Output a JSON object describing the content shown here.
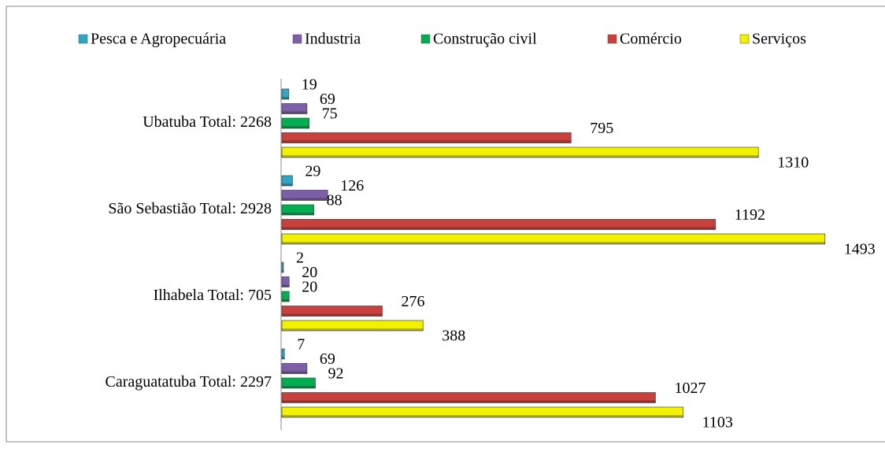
{
  "chart_data": {
    "type": "bar",
    "orientation": "horizontal",
    "categories": [
      "Ubatuba Total: 2268",
      "São Sebastião Total: 2928",
      "Ilhabela Total:  705",
      "Caraguatatuba Total: 2297"
    ],
    "series": [
      {
        "name": "Pesca e Agropecuária",
        "color": "#31a6c4",
        "values": [
          19,
          29,
          2,
          7
        ]
      },
      {
        "name": "Industria",
        "color": "#7d5fa8",
        "values": [
          69,
          126,
          20,
          69
        ]
      },
      {
        "name": "Construção civil",
        "color": "#00b050",
        "values": [
          75,
          88,
          20,
          92
        ]
      },
      {
        "name": "Comércio",
        "color": "#c9403c",
        "values": [
          795,
          1192,
          276,
          1027
        ]
      },
      {
        "name": "Serviços",
        "color": "#f2f200",
        "values": [
          1310,
          1493,
          388,
          1103
        ]
      }
    ],
    "legend": "top"
  }
}
